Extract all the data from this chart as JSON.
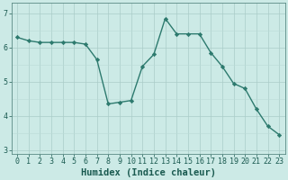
{
  "x": [
    0,
    1,
    2,
    3,
    4,
    5,
    6,
    7,
    8,
    9,
    10,
    11,
    12,
    13,
    14,
    15,
    16,
    17,
    18,
    19,
    20,
    21,
    22,
    23
  ],
  "y": [
    6.3,
    6.2,
    6.15,
    6.15,
    6.15,
    6.15,
    6.1,
    5.65,
    4.35,
    4.4,
    4.45,
    5.45,
    5.8,
    6.85,
    6.4,
    6.4,
    6.4,
    5.85,
    5.45,
    4.95,
    4.8,
    4.2,
    3.7,
    3.45
  ],
  "xlim": [
    -0.5,
    23.5
  ],
  "ylim": [
    2.9,
    7.3
  ],
  "yticks": [
    3,
    4,
    5,
    6,
    7
  ],
  "xticks": [
    0,
    1,
    2,
    3,
    4,
    5,
    6,
    7,
    8,
    9,
    10,
    11,
    12,
    13,
    14,
    15,
    16,
    17,
    18,
    19,
    20,
    21,
    22,
    23
  ],
  "xlabel": "Humidex (Indice chaleur)",
  "bg_color": "#cceae6",
  "grid_color_major": "#aaccc8",
  "grid_color_minor": "#bbdbd7",
  "line_color": "#2d7a6e",
  "marker": "D",
  "marker_size": 2.2,
  "line_width": 1.0,
  "xlabel_fontsize": 7.5,
  "tick_fontsize": 6.0
}
